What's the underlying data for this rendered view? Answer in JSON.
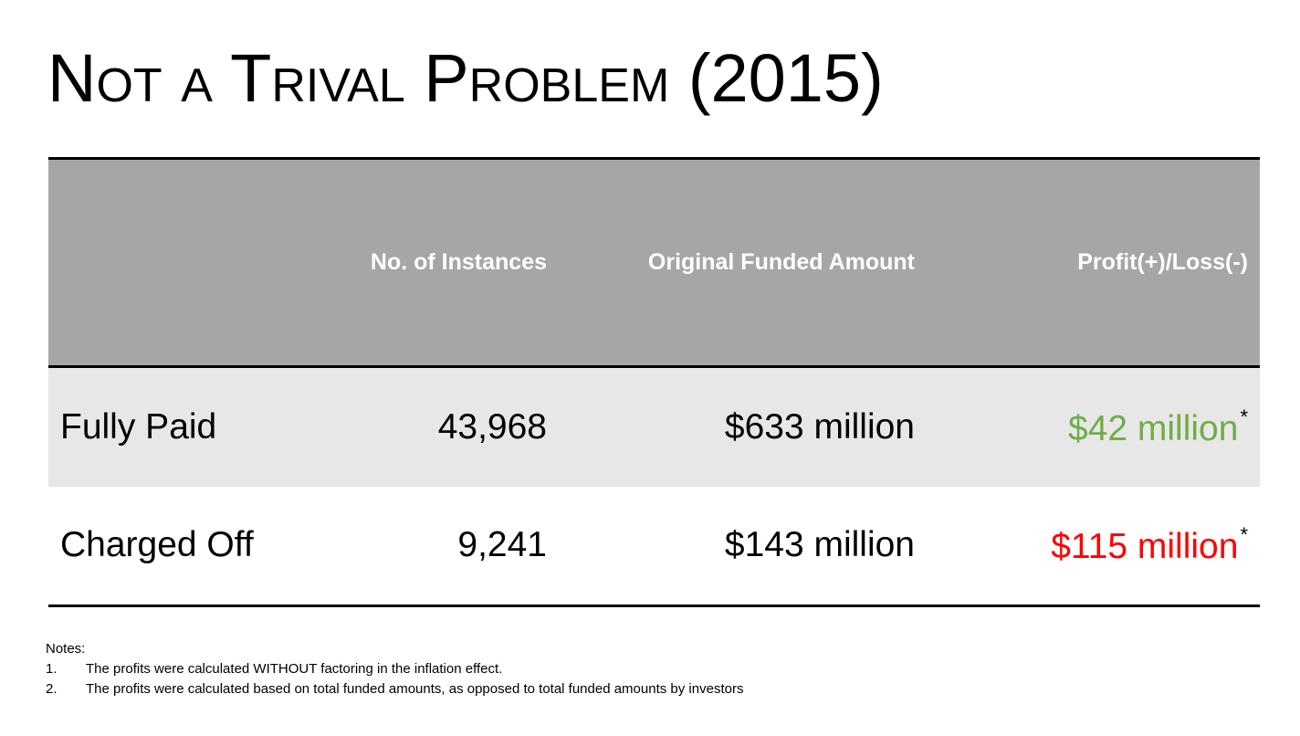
{
  "title": "Not a Trival Problem (2015)",
  "table": {
    "headers": [
      "",
      "No. of Instances",
      "Original Funded Amount",
      "Profit(+)/Loss(-)"
    ],
    "rows": [
      {
        "label": "Fully Paid",
        "instances": "43,968",
        "funded": "$633 million",
        "profit": "$42 million",
        "marker": "*"
      },
      {
        "label": "Charged Off",
        "instances": "9,241",
        "funded": "$143 million",
        "profit": "$115 million",
        "marker": "*"
      }
    ]
  },
  "colors": {
    "header_bg": "#a6a6a6",
    "row_alt_bg": "#e7e7e7",
    "profit": "#70ad47",
    "loss": "#ff0000"
  },
  "notes": {
    "heading": "Notes:",
    "items": [
      {
        "num": "1.",
        "text": "The profits were calculated WITHOUT factoring in the inflation effect."
      },
      {
        "num": "2.",
        "text": "The profits were calculated based on total funded amounts, as opposed to total funded amounts by investors"
      }
    ]
  }
}
